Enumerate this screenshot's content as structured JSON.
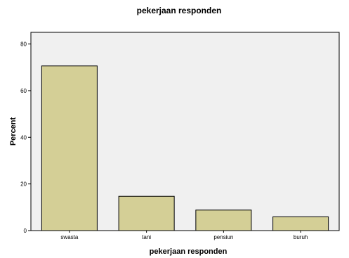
{
  "chart_data": {
    "type": "bar",
    "title": "pekerjaan responden",
    "xlabel": "pekerjaan responden",
    "ylabel": "Percent",
    "categories": [
      "swasta",
      "tani",
      "pensiun",
      "buruh"
    ],
    "values": [
      70.6,
      14.7,
      8.8,
      5.9
    ],
    "ylim": [
      0,
      85
    ],
    "yticks": [
      "0",
      "20",
      "40",
      "60",
      "80"
    ],
    "grid": false,
    "colors": {
      "bar_fill": "#d4cf96",
      "bar_stroke": "#000000",
      "plot_background": "#f0f0f0"
    }
  }
}
